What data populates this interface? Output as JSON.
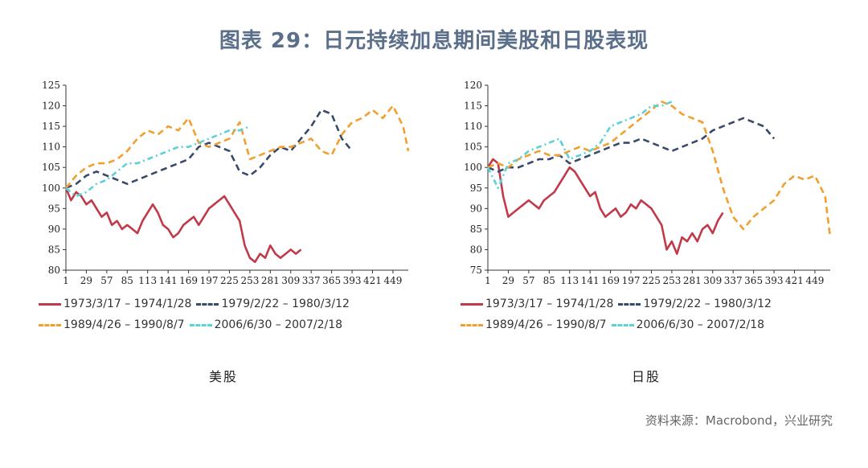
{
  "title": "图表 29：日元持续加息期间美股和日股表现",
  "source": "资料来源：Macrobond，兴业研究",
  "legend": [
    {
      "label": "1973/3/17 – 1974/1/28",
      "color": "#c13a4a",
      "dash": "solid"
    },
    {
      "label": "1979/2/22 – 1980/3/12",
      "color": "#3a4a6b",
      "dash": "dash"
    },
    {
      "label": "1989/4/26 – 1990/8/7",
      "color": "#f0a030",
      "dash": "dash"
    },
    {
      "label": "2006/6/30 – 2007/2/18",
      "color": "#5cd1d6",
      "dash": "dashdot"
    }
  ],
  "chart_data": [
    {
      "type": "line",
      "caption": "美股",
      "ylim": [
        80,
        125
      ],
      "yticks": [
        80,
        85,
        90,
        95,
        100,
        105,
        110,
        115,
        120,
        125
      ],
      "xticks": [
        "1",
        "29",
        "57",
        "85",
        "113",
        "141",
        "169",
        "197",
        "225",
        "253",
        "281",
        "309",
        "337",
        "365",
        "393",
        "421",
        "449"
      ],
      "xlim": [
        1,
        470
      ],
      "series": [
        {
          "name": "1973/3/17 – 1974/1/28",
          "x": [
            1,
            8,
            15,
            22,
            29,
            36,
            43,
            50,
            57,
            64,
            71,
            78,
            85,
            92,
            99,
            106,
            113,
            120,
            127,
            134,
            141,
            148,
            155,
            162,
            169,
            176,
            183,
            190,
            197,
            204,
            211,
            218,
            225,
            232,
            239,
            246,
            253,
            260,
            267,
            274,
            281,
            288,
            295,
            302,
            309,
            316,
            323
          ],
          "y": [
            100,
            97,
            99,
            98,
            96,
            97,
            95,
            93,
            94,
            91,
            92,
            90,
            91,
            90,
            89,
            92,
            94,
            96,
            94,
            91,
            90,
            88,
            89,
            91,
            92,
            93,
            91,
            93,
            95,
            96,
            97,
            98,
            96,
            94,
            92,
            86,
            83,
            82,
            84,
            83,
            86,
            84,
            83,
            84,
            85,
            84,
            85
          ]
        },
        {
          "name": "1979/2/22 – 1980/3/12",
          "x": [
            1,
            15,
            29,
            43,
            57,
            71,
            85,
            99,
            113,
            127,
            141,
            155,
            169,
            183,
            197,
            211,
            225,
            239,
            253,
            267,
            281,
            295,
            309,
            323,
            337,
            351,
            365,
            379,
            393
          ],
          "y": [
            100,
            101,
            103,
            104,
            103,
            102,
            101,
            102,
            103,
            104,
            105,
            106,
            107,
            110,
            111,
            110,
            109,
            104,
            103,
            105,
            108,
            110,
            109,
            112,
            115,
            119,
            118,
            112,
            109
          ]
        },
        {
          "name": "1989/4/26 – 1990/8/7",
          "x": [
            1,
            15,
            29,
            43,
            57,
            71,
            85,
            99,
            113,
            127,
            141,
            155,
            169,
            183,
            197,
            211,
            225,
            239,
            253,
            267,
            281,
            295,
            309,
            323,
            337,
            351,
            365,
            379,
            393,
            407,
            421,
            435,
            449,
            463,
            470
          ],
          "y": [
            100,
            103,
            105,
            106,
            106,
            107,
            109,
            112,
            114,
            113,
            115,
            114,
            117,
            111,
            110,
            111,
            112,
            116,
            107,
            108,
            109,
            110,
            110,
            111,
            112,
            109,
            108,
            113,
            116,
            117,
            119,
            117,
            120,
            115,
            109
          ]
        },
        {
          "name": "2006/6/30 – 2007/2/18",
          "x": [
            1,
            15,
            29,
            43,
            57,
            71,
            85,
            99,
            113,
            127,
            141,
            155,
            169,
            183,
            197,
            211,
            225,
            239,
            253
          ],
          "y": [
            100,
            98,
            99,
            101,
            102,
            104,
            106,
            106,
            107,
            108,
            109,
            110,
            110,
            111,
            112,
            113,
            114,
            114,
            115
          ]
        }
      ]
    },
    {
      "type": "line",
      "caption": "日股",
      "ylim": [
        75,
        120
      ],
      "yticks": [
        75,
        80,
        85,
        90,
        95,
        100,
        105,
        110,
        115,
        120
      ],
      "xticks": [
        "1",
        "29",
        "57",
        "85",
        "113",
        "141",
        "169",
        "197",
        "225",
        "253",
        "281",
        "309",
        "337",
        "365",
        "393",
        "421",
        "449"
      ],
      "xlim": [
        1,
        470
      ],
      "series": [
        {
          "name": "1973/3/17 – 1974/1/28",
          "x": [
            1,
            8,
            15,
            22,
            29,
            36,
            43,
            50,
            57,
            64,
            71,
            78,
            85,
            92,
            99,
            106,
            113,
            120,
            127,
            134,
            141,
            148,
            155,
            162,
            169,
            176,
            183,
            190,
            197,
            204,
            211,
            218,
            225,
            232,
            239,
            246,
            253,
            260,
            267,
            274,
            281,
            288,
            295,
            302,
            309,
            316,
            323
          ],
          "y": [
            100,
            102,
            101,
            93,
            88,
            89,
            90,
            91,
            92,
            91,
            90,
            92,
            93,
            94,
            96,
            98,
            100,
            99,
            97,
            95,
            93,
            94,
            90,
            88,
            89,
            90,
            88,
            89,
            91,
            90,
            92,
            91,
            90,
            88,
            86,
            80,
            82,
            79,
            83,
            82,
            84,
            82,
            85,
            86,
            84,
            87,
            89
          ]
        },
        {
          "name": "1979/2/22 – 1980/3/12",
          "x": [
            1,
            15,
            29,
            43,
            57,
            71,
            85,
            99,
            113,
            127,
            141,
            155,
            169,
            183,
            197,
            211,
            225,
            239,
            253,
            267,
            281,
            295,
            309,
            323,
            337,
            351,
            365,
            379,
            393
          ],
          "y": [
            100,
            99,
            100,
            100,
            101,
            102,
            102,
            103,
            101,
            102,
            103,
            104,
            105,
            106,
            106,
            107,
            106,
            105,
            104,
            105,
            106,
            107,
            109,
            110,
            111,
            112,
            111,
            110,
            107
          ]
        },
        {
          "name": "1989/4/26 – 1990/8/7",
          "x": [
            1,
            15,
            29,
            43,
            57,
            71,
            85,
            99,
            113,
            127,
            141,
            155,
            169,
            183,
            197,
            211,
            225,
            239,
            253,
            267,
            281,
            295,
            309,
            323,
            337,
            351,
            365,
            379,
            393,
            407,
            421,
            435,
            449,
            463,
            470
          ],
          "y": [
            100,
            101,
            100,
            102,
            103,
            104,
            103,
            103,
            104,
            105,
            104,
            105,
            106,
            108,
            110,
            112,
            114,
            116,
            115,
            113,
            112,
            111,
            104,
            95,
            88,
            85,
            88,
            90,
            92,
            96,
            98,
            97,
            98,
            93,
            83
          ]
        },
        {
          "name": "2006/6/30 – 2007/2/18",
          "x": [
            1,
            15,
            29,
            43,
            57,
            71,
            85,
            99,
            113,
            127,
            141,
            155,
            169,
            183,
            197,
            211,
            225,
            239,
            253
          ],
          "y": [
            100,
            95,
            101,
            102,
            104,
            105,
            106,
            107,
            102,
            103,
            104,
            106,
            110,
            111,
            112,
            113,
            115,
            115,
            116
          ]
        }
      ]
    }
  ]
}
